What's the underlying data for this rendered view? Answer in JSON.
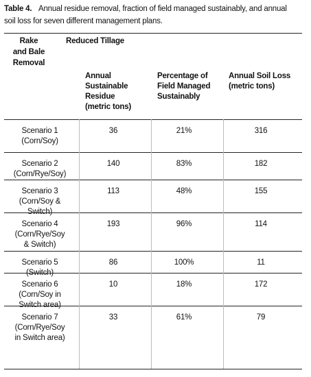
{
  "caption": {
    "label": "Table 4.",
    "text": [
      "Annual residue removal, fraction of field managed sustainably, and annual",
      "soil loss for seven different management plans."
    ]
  },
  "table": {
    "header": {
      "row_group": [
        "Rake",
        "and Bale",
        "Removal"
      ],
      "group": "Reduced Tillage",
      "columns": [
        [
          "Annual",
          "Sustainable",
          "Residue",
          "(metric tons)"
        ],
        [
          "Percentage of",
          "Field Managed",
          "Sustainably"
        ],
        [
          "Annual Soil Loss",
          "(metric tons)"
        ]
      ]
    },
    "rows": [
      {
        "label": [
          "Scenario 1",
          "(Corn/Soy)"
        ],
        "cells": [
          "36",
          "21%",
          "316"
        ]
      },
      {
        "label": [
          "Scenario 2",
          "(Corn/Rye/Soy)"
        ],
        "cells": [
          "140",
          "83%",
          "182"
        ]
      },
      {
        "label": [
          "Scenario 3",
          "(Corn/Soy &",
          "Switch)"
        ],
        "cells": [
          "113",
          "48%",
          "155"
        ]
      },
      {
        "label": [
          "Scenario 4",
          "(Corn/Rye/Soy",
          "& Switch)"
        ],
        "cells": [
          "193",
          "96%",
          "114"
        ]
      },
      {
        "label": [
          "Scenario 5",
          "(Switch)"
        ],
        "cells": [
          "86",
          "100%",
          "11"
        ]
      },
      {
        "label": [
          "Scenario 6",
          "(Corn/Soy in",
          "Switch area)"
        ],
        "cells": [
          "10",
          "18%",
          "172"
        ]
      },
      {
        "label": [
          "Scenario 7",
          "(Corn/Rye/Soy",
          "in Switch area)"
        ],
        "cells": [
          "33",
          "61%",
          "79"
        ]
      }
    ]
  }
}
